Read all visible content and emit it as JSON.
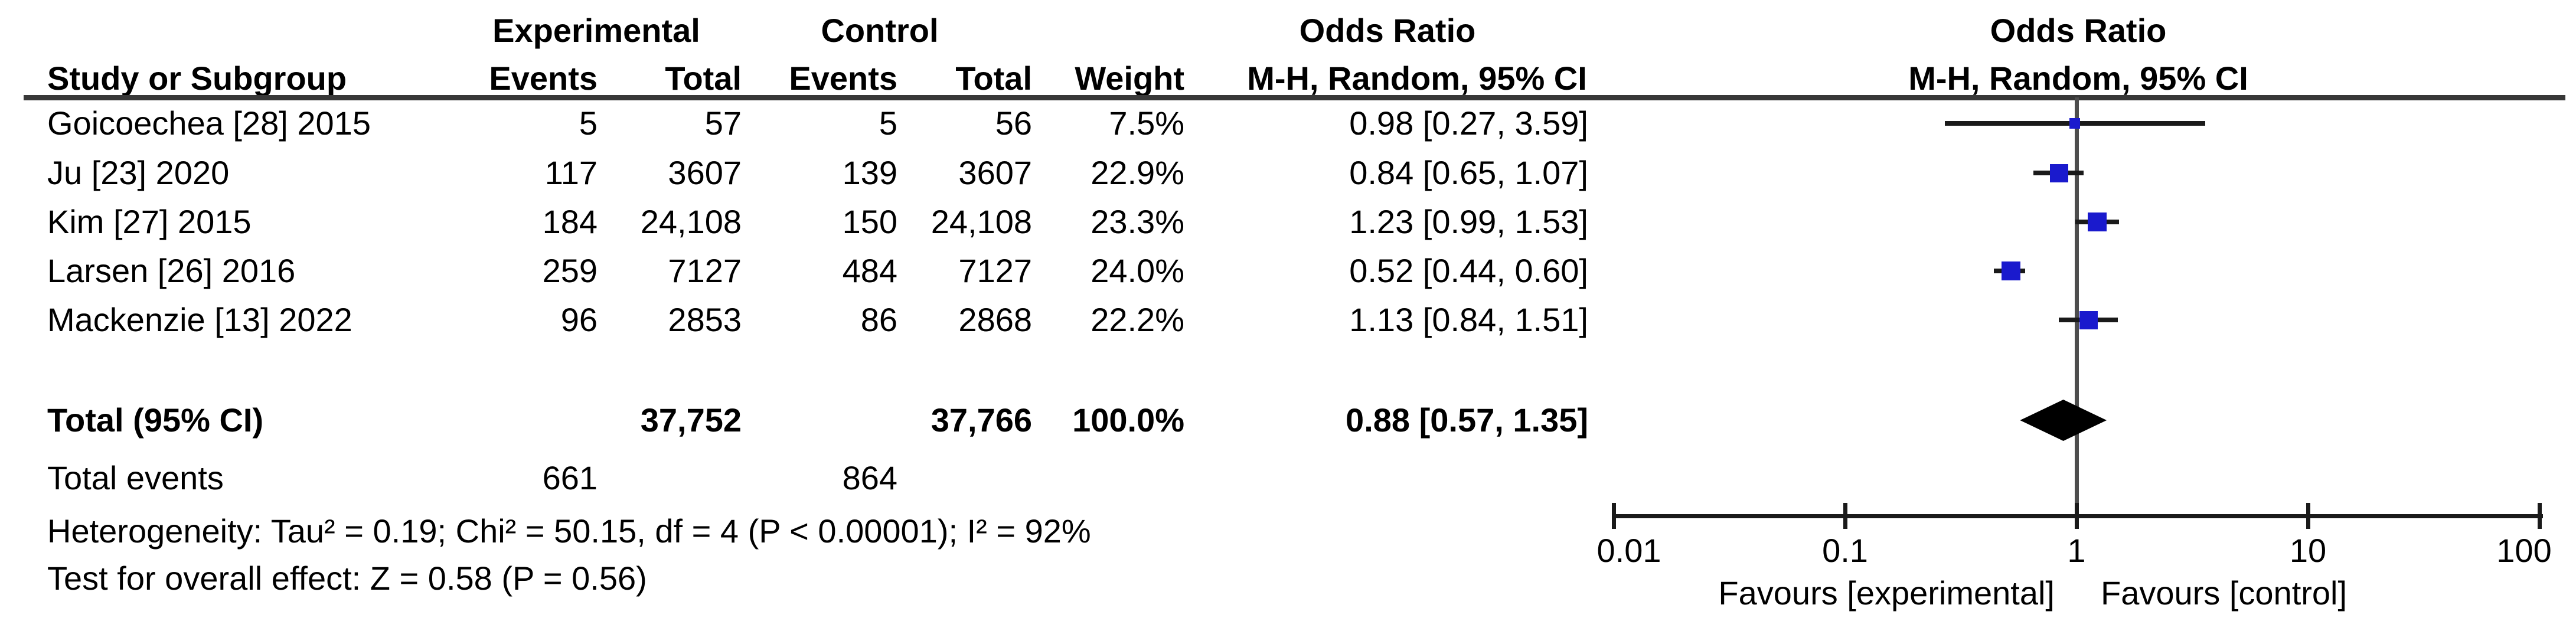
{
  "colors": {
    "marker_blue": "#1a1acd",
    "diamond_black": "#000000",
    "rule_gray": "#383838",
    "centerline_gray": "#4d4d4d",
    "axis_black": "#1a1a1a"
  },
  "header": {
    "group_experimental": "Experimental",
    "group_control": "Control",
    "or_title_text_col": "Odds Ratio",
    "or_subtitle_text_col": "M-H, Random, 95% CI",
    "or_title_plot_col": "Odds Ratio",
    "or_subtitle_plot_col": "M-H, Random, 95% CI",
    "study_col": "Study or Subgroup",
    "events_exp_col": "Events",
    "total_exp_col": "Total",
    "events_ctl_col": "Events",
    "total_ctl_col": "Total",
    "weight_col": "Weight"
  },
  "table": {
    "rows": [
      {
        "study": "Goicoechea [28] 2015",
        "events_exp": "5",
        "total_exp": "57",
        "events_ctl": "5",
        "total_ctl": "56",
        "weight": "7.5%",
        "or_ci": "0.98 [0.27, 3.59]"
      },
      {
        "study": "Ju [23] 2020",
        "events_exp": "117",
        "total_exp": "3607",
        "events_ctl": "139",
        "total_ctl": "3607",
        "weight": "22.9%",
        "or_ci": "0.84 [0.65, 1.07]"
      },
      {
        "study": "Kim [27] 2015",
        "events_exp": "184",
        "total_exp": "24,108",
        "events_ctl": "150",
        "total_ctl": "24,108",
        "weight": "23.3%",
        "or_ci": "1.23 [0.99, 1.53]"
      },
      {
        "study": "Larsen [26] 2016",
        "events_exp": "259",
        "total_exp": "7127",
        "events_ctl": "484",
        "total_ctl": "7127",
        "weight": "24.0%",
        "or_ci": "0.52 [0.44, 0.60]"
      },
      {
        "study": "Mackenzie [13] 2022",
        "events_exp": "96",
        "total_exp": "2853",
        "events_ctl": "86",
        "total_ctl": "2868",
        "weight": "22.2%",
        "or_ci": "1.13 [0.84, 1.51]"
      }
    ],
    "total_row": {
      "label": "Total (95% CI)",
      "total_exp": "37,752",
      "total_ctl": "37,766",
      "weight": "100.0%",
      "or_ci": "0.88 [0.57, 1.35]"
    },
    "total_events_row": {
      "label": "Total events",
      "events_exp": "661",
      "events_ctl": "864"
    }
  },
  "stats": {
    "heterogeneity": "Heterogeneity: Tau² = 0.19; Chi² = 50.15, df = 4 (P < 0.00001); I² = 92%",
    "overall_effect": "Test for overall effect: Z = 0.58 (P = 0.56)"
  },
  "axis": {
    "tick_labels": [
      "0.01",
      "0.1",
      "1",
      "10",
      "100"
    ],
    "favours_left": "Favours [experimental]",
    "favours_right": "Favours [control]"
  },
  "chart_data": {
    "type": "forest",
    "x_scale": "log10",
    "x_ticks": [
      0.01,
      0.1,
      1,
      10,
      100
    ],
    "xlim": [
      0.01,
      100
    ],
    "null_line": 1,
    "studies": [
      {
        "name": "Goicoechea [28] 2015",
        "or": 0.98,
        "ci_low": 0.27,
        "ci_high": 3.59,
        "weight_pct": 7.5
      },
      {
        "name": "Ju [23] 2020",
        "or": 0.84,
        "ci_low": 0.65,
        "ci_high": 1.07,
        "weight_pct": 22.9
      },
      {
        "name": "Kim [27] 2015",
        "or": 1.23,
        "ci_low": 0.99,
        "ci_high": 1.53,
        "weight_pct": 23.3
      },
      {
        "name": "Larsen [26] 2016",
        "or": 0.52,
        "ci_low": 0.44,
        "ci_high": 0.6,
        "weight_pct": 24.0
      },
      {
        "name": "Mackenzie [13] 2022",
        "or": 1.13,
        "ci_low": 0.84,
        "ci_high": 1.51,
        "weight_pct": 22.2
      }
    ],
    "total": {
      "or": 0.88,
      "ci_low": 0.57,
      "ci_high": 1.35,
      "weight_pct": 100.0
    },
    "totals": {
      "events_exp": 661,
      "total_exp": 37752,
      "events_ctl": 864,
      "total_ctl": 37766
    },
    "heterogeneity": {
      "tau2": 0.19,
      "chi2": 50.15,
      "df": 4,
      "p": "< 0.00001",
      "i2_pct": 92
    },
    "overall_effect": {
      "z": 0.58,
      "p": 0.56
    },
    "effect_model": "M-H, Random, 95% CI",
    "favours": [
      "Favours [experimental]",
      "Favours [control]"
    ]
  }
}
